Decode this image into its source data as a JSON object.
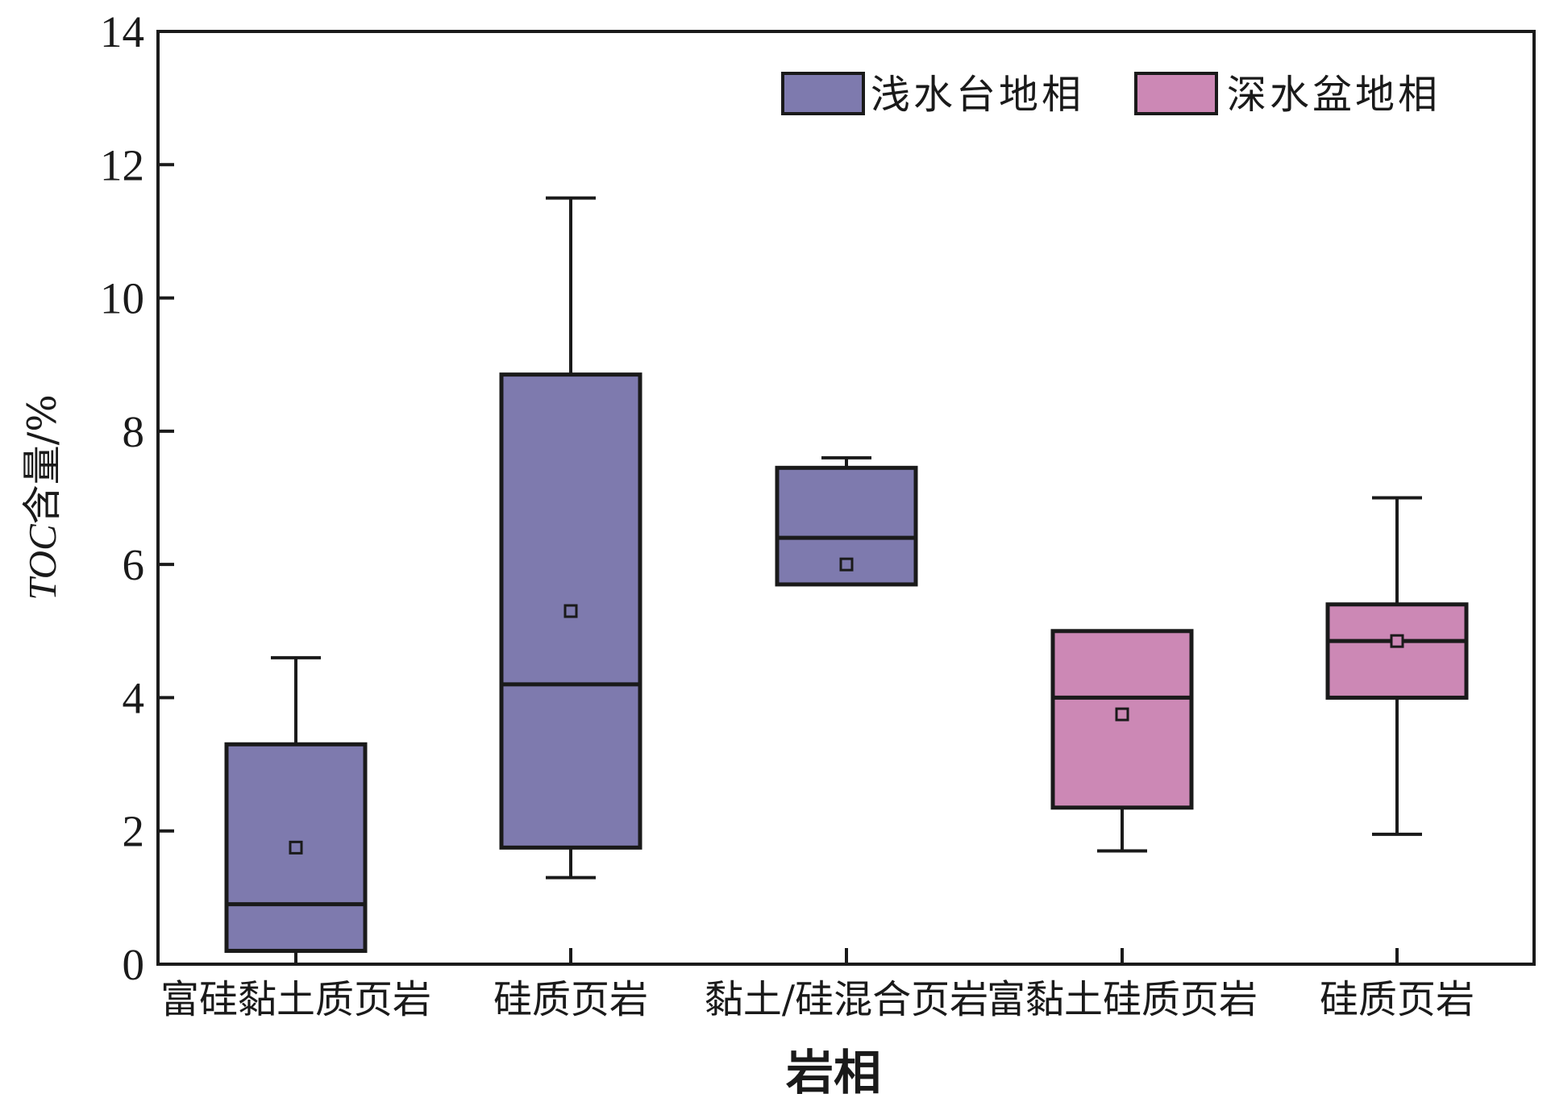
{
  "chart_data": {
    "type": "box",
    "ylabel": {
      "italic": "TOC",
      "rest": "含量/%"
    },
    "xlabel": "岩相",
    "ylim": [
      0,
      14
    ],
    "yticks": [
      0,
      2,
      4,
      6,
      8,
      10,
      12,
      14
    ],
    "grid": false,
    "legend_position": "top-right",
    "legend": [
      {
        "label": "浅水台地相",
        "color": "#7e7aae"
      },
      {
        "label": "深水盆地相",
        "color": "#cc88b5"
      }
    ],
    "boxes": [
      {
        "category": "富硅黏土质页岩",
        "group": 0,
        "whisker_low": 0.2,
        "q1": 0.2,
        "median": 0.9,
        "q3": 3.3,
        "whisker_high": 4.6,
        "mean": 1.75
      },
      {
        "category": "硅质页岩",
        "group": 0,
        "whisker_low": 1.3,
        "q1": 1.75,
        "median": 4.2,
        "q3": 8.85,
        "whisker_high": 11.5,
        "mean": 5.3
      },
      {
        "category": "黏土/硅混合页岩",
        "group": 0,
        "whisker_low": 5.7,
        "q1": 5.7,
        "median": 6.4,
        "q3": 7.45,
        "whisker_high": 7.6,
        "mean": 6.0
      },
      {
        "category": "富黏土硅质页岩",
        "group": 1,
        "whisker_low": 1.7,
        "q1": 2.35,
        "median": 4.0,
        "q3": 5.0,
        "whisker_high": 5.0,
        "mean": 3.75
      },
      {
        "category": "硅质页岩",
        "group": 1,
        "whisker_low": 1.95,
        "q1": 4.0,
        "median": 4.85,
        "q3": 5.4,
        "whisker_high": 7.0,
        "mean": 4.85
      }
    ]
  }
}
